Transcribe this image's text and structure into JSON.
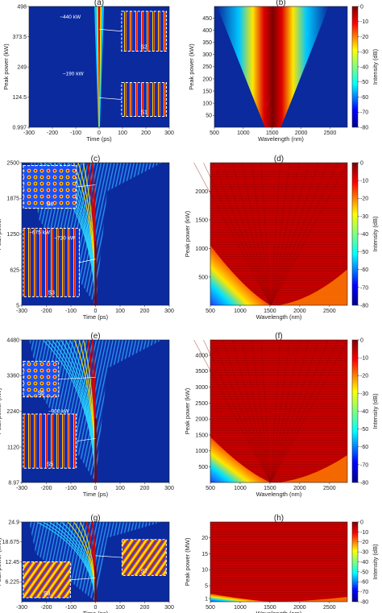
{
  "colors": {
    "blue": "#0a2a9e",
    "cyan": "#00c8ff",
    "yellow": "#ffe600",
    "red": "#d80000",
    "darkred": "#7d0000",
    "inset_border": "#ffffff"
  },
  "chart_data": [
    {
      "id": "a",
      "type": "heatmap",
      "panel_label": "(a)",
      "xlabel": "Time (ps)",
      "ylabel": "Peak power (kW)",
      "xlim": [
        -300,
        300
      ],
      "ylim": [
        0.997,
        498
      ],
      "xticks": [
        "-300",
        "-200",
        "-100",
        "0",
        "100",
        "200",
        "300"
      ],
      "yticks": [
        "0.997",
        "124.5",
        "249",
        "373.5",
        "498"
      ],
      "annotations": [
        "~440 kW",
        "~190 kW"
      ],
      "insets": [
        "S2",
        "S1"
      ]
    },
    {
      "id": "b",
      "type": "heatmap",
      "panel_label": "(b)",
      "xlabel": "Wavelength (nm)",
      "ylabel": "Peak power (kW)",
      "xlim": [
        500,
        2800
      ],
      "ylim": [
        0.997,
        498
      ],
      "xticks": [
        "500",
        "1000",
        "1500",
        "2000",
        "2500"
      ],
      "yticks": [
        "50",
        "100",
        "150",
        "200",
        "250",
        "300",
        "350",
        "400",
        "450"
      ],
      "colorbar": {
        "label": "Intensity (dB)",
        "ticks": [
          "0",
          "-10",
          "-20",
          "-30",
          "-40",
          "-50",
          "-60",
          "-70",
          "-80"
        ]
      }
    },
    {
      "id": "c",
      "type": "heatmap",
      "panel_label": "(c)",
      "xlabel": "Time (ps)",
      "ylabel": "Peak power",
      "xlim": [
        -300,
        300
      ],
      "ylim": [
        5,
        2500
      ],
      "xticks": [
        "-300",
        "-200",
        "-100",
        "0",
        "100",
        "200",
        "300"
      ],
      "yticks": [
        "5",
        "625",
        "1250",
        "1875",
        "2500"
      ],
      "annotations": [
        "~675 kW",
        "~720 kW"
      ],
      "insets": [
        "S4",
        "S3"
      ]
    },
    {
      "id": "d",
      "type": "heatmap",
      "panel_label": "(d)",
      "xlabel": "Wavelength (nm)",
      "ylabel": "Peak power (kW)",
      "xlim": [
        500,
        2800
      ],
      "ylim": [
        5,
        2500
      ],
      "xticks": [
        "500",
        "1000",
        "1500",
        "2000",
        "2500"
      ],
      "yticks": [
        "500",
        "1000",
        "1500",
        "2000"
      ],
      "colorbar": {
        "label": "Intensity (dB)",
        "ticks": [
          "0",
          "-10",
          "-20",
          "-30",
          "-40",
          "-50",
          "-60",
          "-70",
          "-80"
        ]
      }
    },
    {
      "id": "e",
      "type": "heatmap",
      "panel_label": "(e)",
      "xlabel": "Time (ps)",
      "ylabel": "Peak power (kW)",
      "xlim": [
        -300,
        300
      ],
      "ylim": [
        8.97,
        4480
      ],
      "xticks": [
        "-300",
        "-200",
        "-100",
        "0",
        "100",
        "200",
        "300"
      ],
      "yticks": [
        "8.97",
        "1120",
        "2240",
        "3360",
        "4480"
      ],
      "annotations": [
        "~900 kW"
      ],
      "insets": [
        "S6",
        "S5"
      ]
    },
    {
      "id": "f",
      "type": "heatmap",
      "panel_label": "(f)",
      "xlabel": "Wavelength (nm)",
      "ylabel": "Peak power (kW)",
      "xlim": [
        500,
        2800
      ],
      "ylim": [
        8.97,
        4480
      ],
      "xticks": [
        "500",
        "1000",
        "1500",
        "2000",
        "2500"
      ],
      "yticks": [
        "500",
        "1000",
        "1500",
        "2000",
        "2500",
        "3000",
        "3500",
        "4000"
      ],
      "colorbar": {
        "label": "Intensity (dB)",
        "ticks": [
          "0",
          "-10",
          "-20",
          "-30",
          "-40",
          "-50",
          "-60",
          "-70",
          "-80"
        ]
      }
    },
    {
      "id": "g",
      "type": "heatmap",
      "panel_label": "(g)",
      "xlabel": "Time (ps)",
      "ylabel": "Peak power (MW)",
      "xlim": [
        -300,
        300
      ],
      "ylim": [
        0,
        24.9
      ],
      "xticks": [
        "-300",
        "-200",
        "-100",
        "0",
        "100",
        "200",
        "300"
      ],
      "yticks": [
        "6.225",
        "12.45",
        "18.675",
        "24.9"
      ],
      "insets": [
        "S8",
        "S7"
      ]
    },
    {
      "id": "h",
      "type": "heatmap",
      "panel_label": "(h)",
      "xlabel": "Wavelength (nm)",
      "ylabel": "Peak power (MW)",
      "xlim": [
        500,
        2800
      ],
      "ylim": [
        0,
        24.9
      ],
      "xticks": [
        "500",
        "1000",
        "1500",
        "2000",
        "2500"
      ],
      "yticks": [
        "1",
        "5",
        "10",
        "15",
        "20"
      ],
      "colorbar": {
        "label": "Intensity (dB)",
        "ticks": [
          "0",
          "-10",
          "-20",
          "-30",
          "-40",
          "-50",
          "-60",
          "-70",
          "-80"
        ]
      }
    }
  ]
}
